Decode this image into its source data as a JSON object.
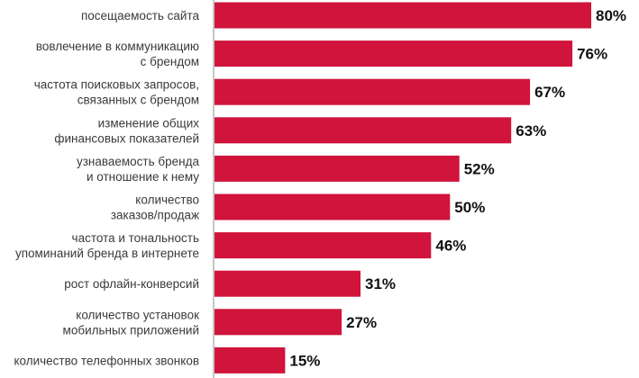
{
  "chart_data": {
    "type": "bar",
    "orientation": "horizontal",
    "bar_color": "#D0143C",
    "categories": [
      [
        "посещаемость сайта"
      ],
      [
        "вовлечение в коммуникацию",
        "с брендом"
      ],
      [
        "частота поисковых запросов,",
        "связанных с брендом"
      ],
      [
        "изменение общих",
        "финансовых показателей"
      ],
      [
        "узнаваемость бренда",
        "и отношение к нему"
      ],
      [
        "количество",
        "заказов/продаж"
      ],
      [
        "частота и тональность",
        "упоминаний бренда в интернете"
      ],
      [
        "рост офлайн-конверсий"
      ],
      [
        "количество установок",
        "мобильных приложений"
      ],
      [
        "количество телефонных звонков"
      ]
    ],
    "values": [
      80,
      76,
      67,
      63,
      52,
      50,
      46,
      31,
      27,
      15
    ],
    "value_labels": [
      "80%",
      "76%",
      "67%",
      "63%",
      "52%",
      "50%",
      "46%",
      "31%",
      "27%",
      "15%"
    ],
    "xlim": [
      0,
      100
    ],
    "grid": false,
    "legend": "none"
  }
}
